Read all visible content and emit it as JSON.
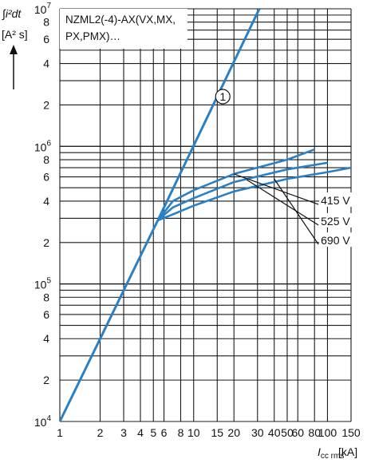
{
  "colors": {
    "grid": "#1a1a1a",
    "curve": "#2a80c4",
    "text": "#111111"
  },
  "chart_data": {
    "type": "line",
    "title": "NZML2(-4)-AX(VX,MX,PX,PMX)…",
    "title_lines": [
      "NZML2(-4)-AX(VX,MX,",
      "PX,PMX)…"
    ],
    "ylabel_top": "∫i²dt",
    "ylabel_unit": "[A² s]",
    "xlabel": "I",
    "xlabel_sub": "cc rms",
    "xlabel_unit": "[kA]",
    "x_scale": "log",
    "y_scale": "log",
    "xlim": [
      1,
      150
    ],
    "ylim": [
      10000,
      10000000
    ],
    "grid": true,
    "x_ticks": [
      1,
      2,
      3,
      4,
      5,
      6,
      8,
      10,
      15,
      20,
      30,
      40,
      50,
      60,
      80,
      100,
      150
    ],
    "x_tick_labels": [
      "1",
      "2",
      "3",
      "4",
      "5",
      "6",
      "8",
      "10",
      "15",
      "20",
      "30",
      "40",
      "50",
      "60",
      "80",
      "100",
      "150"
    ],
    "y_minor_ticks": [
      {
        "value": 20000,
        "label": "2"
      },
      {
        "value": 40000,
        "label": "4"
      },
      {
        "value": 60000,
        "label": "6"
      },
      {
        "value": 80000,
        "label": "8"
      },
      {
        "value": 200000,
        "label": "2"
      },
      {
        "value": 400000,
        "label": "4"
      },
      {
        "value": 600000,
        "label": "6"
      },
      {
        "value": 800000,
        "label": "8"
      },
      {
        "value": 2000000,
        "label": "2"
      },
      {
        "value": 4000000,
        "label": "4"
      },
      {
        "value": 6000000,
        "label": "6"
      },
      {
        "value": 8000000,
        "label": "8"
      }
    ],
    "y_decades": [
      {
        "value": 10000,
        "base": "10",
        "exp": "4"
      },
      {
        "value": 100000,
        "base": "10",
        "exp": "5"
      },
      {
        "value": 1000000,
        "base": "10",
        "exp": "6"
      },
      {
        "value": 10000000,
        "base": "10",
        "exp": "7"
      }
    ],
    "series": [
      {
        "name": "1",
        "x": [
          1,
          5.4,
          31
        ],
        "y": [
          10000,
          290000,
          10000000
        ]
      },
      {
        "x": [
          5.4,
          7,
          10,
          20,
          50,
          80
        ],
        "y": [
          290000,
          400000,
          480000,
          630000,
          800000,
          950000
        ]
      },
      {
        "x": [
          5.4,
          7,
          10,
          20,
          50,
          100
        ],
        "y": [
          290000,
          360000,
          420000,
          550000,
          680000,
          760000
        ]
      },
      {
        "x": [
          5.4,
          7,
          10,
          20,
          50,
          100,
          150
        ],
        "y": [
          290000,
          320000,
          370000,
          470000,
          580000,
          650000,
          700000
        ]
      }
    ],
    "annotations": [
      {
        "text": "415 V",
        "x": 88,
        "y": 410000,
        "leader_from": [
          20,
          630000
        ]
      },
      {
        "text": "525 V",
        "x": 88,
        "y": 290000,
        "leader_from": [
          25,
          570000
        ]
      },
      {
        "text": "690 V",
        "x": 88,
        "y": 210000,
        "leader_from": [
          40,
          580000
        ]
      },
      {
        "text": "1",
        "x": 16.5,
        "y": 2300000
      }
    ]
  }
}
